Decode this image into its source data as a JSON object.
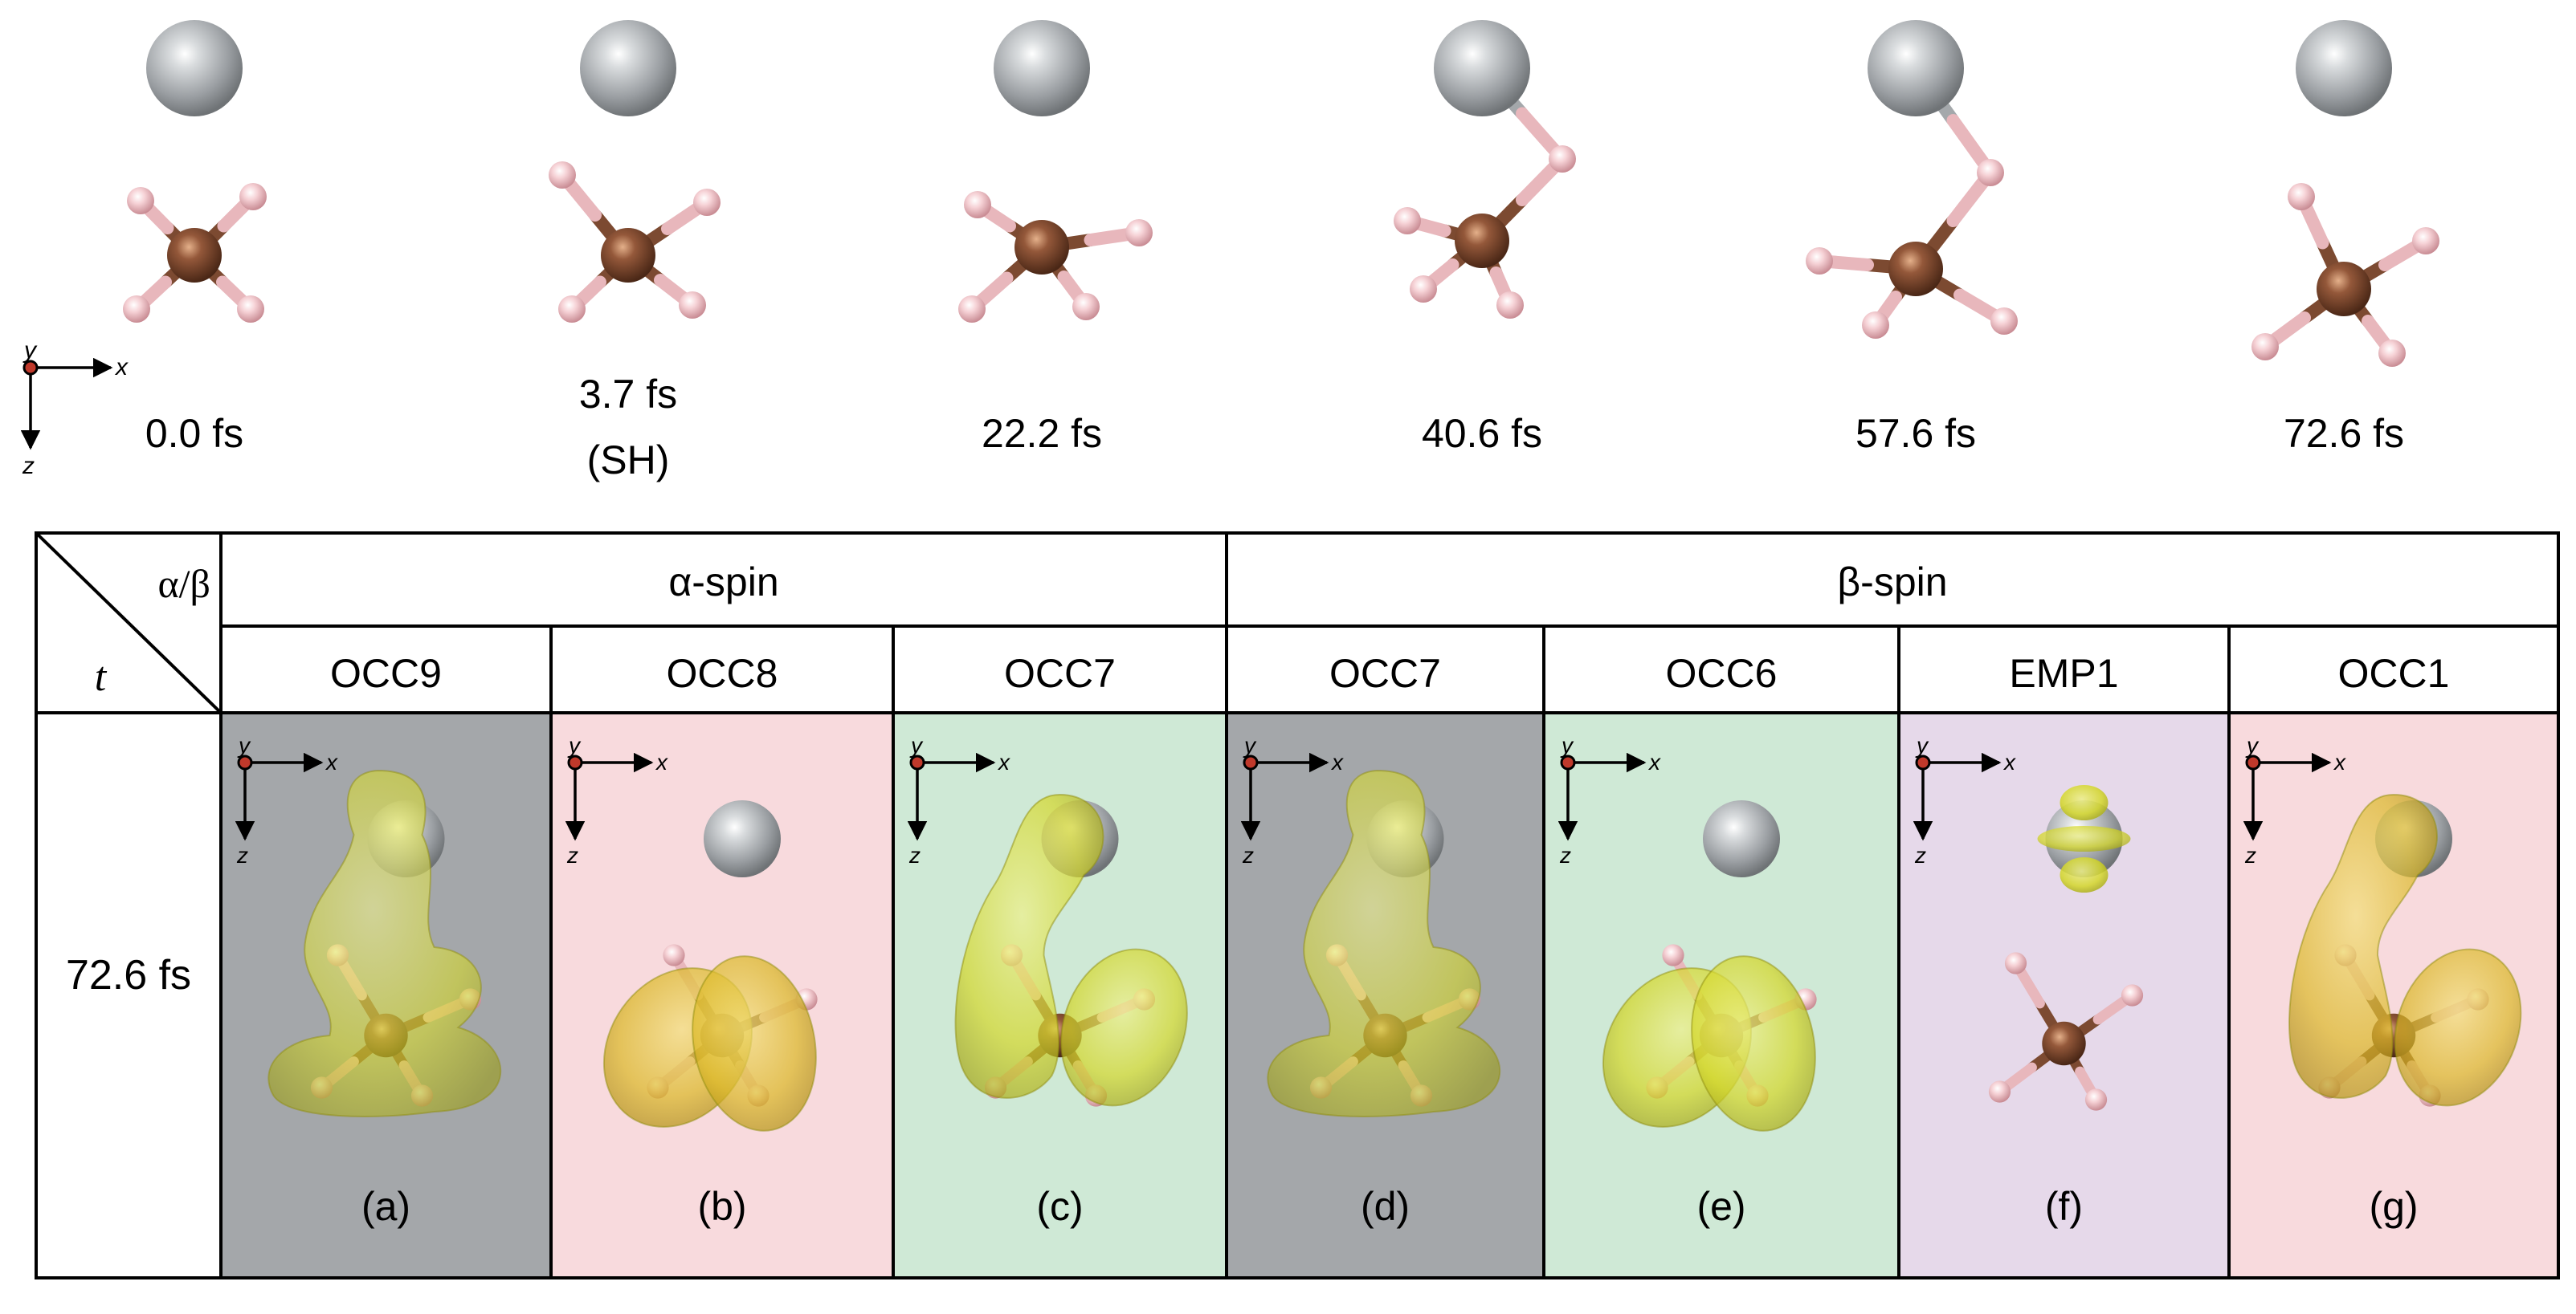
{
  "colors": {
    "silver_atom": "#a9adb0",
    "copper_atom": "#8a5232",
    "hydrogen_atom": "#f1c3c7",
    "bond_metal": "#7c4a31",
    "bond_hydrogen": "#e8b7bc",
    "isosurface": "#dfe23a",
    "panel_grey": "#a4a7aa",
    "panel_pink": "#f8dadd",
    "panel_green": "#cfe9d6",
    "panel_lavender": "#e6d9ea"
  },
  "axes_glyph": {
    "x": "x",
    "y": "y",
    "z": "z"
  },
  "snapshots": [
    {
      "time": "0.0 fs",
      "note": ""
    },
    {
      "time": "3.7 fs",
      "note": "(SH)"
    },
    {
      "time": "22.2 fs",
      "note": ""
    },
    {
      "time": "40.6 fs",
      "note": ""
    },
    {
      "time": "57.6 fs",
      "note": ""
    },
    {
      "time": "72.6 fs",
      "note": ""
    }
  ],
  "table": {
    "corner_top": "α/β",
    "corner_bottom": "t",
    "groups": [
      {
        "label": "α-spin"
      },
      {
        "label": "β-spin"
      }
    ],
    "row_time": "72.6 fs",
    "columns": [
      {
        "orbital": "OCC9",
        "tag": "(a)",
        "background": "grey",
        "surface": "extended"
      },
      {
        "orbital": "OCC8",
        "tag": "(b)",
        "background": "pink",
        "surface": "lobes-orange"
      },
      {
        "orbital": "OCC7",
        "tag": "(c)",
        "background": "green",
        "surface": "wrap"
      },
      {
        "orbital": "OCC7",
        "tag": "(d)",
        "background": "grey",
        "surface": "extended"
      },
      {
        "orbital": "OCC6",
        "tag": "(e)",
        "background": "green",
        "surface": "lobes-green"
      },
      {
        "orbital": "EMP1",
        "tag": "(f)",
        "background": "lavender",
        "surface": "metal-d"
      },
      {
        "orbital": "OCC1",
        "tag": "(g)",
        "background": "pink",
        "surface": "wrap-orange"
      }
    ]
  }
}
